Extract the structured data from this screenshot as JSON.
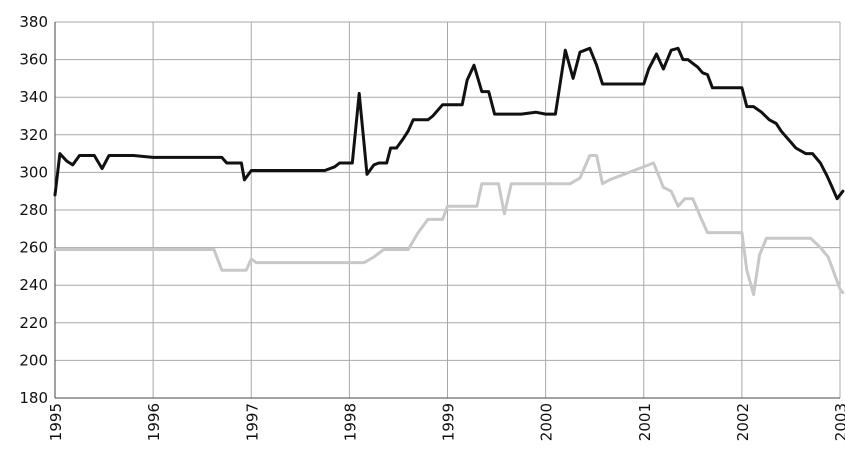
{
  "chart_data": {
    "type": "line",
    "title": "",
    "xlabel": "",
    "ylabel": "",
    "xlim": [
      1995,
      2003
    ],
    "ylim": [
      180,
      380
    ],
    "grid": true,
    "y_ticks": [
      180,
      200,
      220,
      240,
      260,
      280,
      300,
      320,
      340,
      360,
      380
    ],
    "x_tick_labels": [
      "1995",
      "1996",
      "1997",
      "1998",
      "1999",
      "2000",
      "2001",
      "2002",
      "2003"
    ],
    "x_ticks": [
      1995,
      1996,
      1997,
      1998,
      1999,
      2000,
      2001,
      2002,
      2003
    ],
    "series": [
      {
        "color": "#111111",
        "x": [
          1995.0,
          1995.05,
          1995.12,
          1995.18,
          1995.25,
          1995.32,
          1995.4,
          1995.48,
          1995.55,
          1995.62,
          1995.7,
          1995.8,
          1996.0,
          1996.2,
          1996.4,
          1996.6,
          1996.7,
          1996.75,
          1996.85,
          1996.9,
          1996.93,
          1997.0,
          1997.05,
          1997.1,
          1997.3,
          1997.5,
          1997.7,
          1997.75,
          1997.85,
          1997.9,
          1998.0,
          1998.03,
          1998.1,
          1998.18,
          1998.25,
          1998.3,
          1998.38,
          1998.42,
          1998.48,
          1998.55,
          1998.6,
          1998.65,
          1998.73,
          1998.8,
          1998.85,
          1998.95,
          1999.0,
          1999.05,
          1999.15,
          1999.2,
          1999.27,
          1999.35,
          1999.42,
          1999.48,
          1999.55,
          1999.6,
          1999.75,
          1999.9,
          2000.0,
          2000.1,
          2000.2,
          2000.28,
          2000.35,
          2000.45,
          2000.52,
          2000.58,
          2000.65,
          2000.75,
          2000.9,
          2001.0,
          2001.05,
          2001.13,
          2001.2,
          2001.28,
          2001.35,
          2001.4,
          2001.45,
          2001.5,
          2001.55,
          2001.6,
          2001.65,
          2001.7,
          2001.78,
          2001.85,
          2001.92,
          2002.0,
          2002.05,
          2002.12,
          2002.2,
          2002.28,
          2002.35,
          2002.4,
          2002.45,
          2002.5,
          2002.55,
          2002.65,
          2002.72,
          2002.8,
          2002.87,
          2002.92,
          2002.97,
          2003.03
        ],
        "values": [
          288,
          310,
          306,
          304,
          309,
          309,
          309,
          302,
          309,
          309,
          309,
          309,
          308,
          308,
          308,
          308,
          308,
          305,
          305,
          305,
          296,
          301,
          301,
          301,
          301,
          301,
          301,
          301,
          303,
          305,
          305,
          305,
          342,
          299,
          304,
          305,
          305,
          313,
          313,
          318,
          322,
          328,
          328,
          328,
          330,
          336,
          336,
          336,
          336,
          349,
          357,
          343,
          343,
          331,
          331,
          331,
          331,
          332,
          331,
          331,
          365,
          350,
          364,
          366,
          357,
          347,
          347,
          347,
          347,
          347,
          355,
          363,
          355,
          365,
          366,
          360,
          360,
          358,
          356,
          353,
          352,
          345,
          345,
          345,
          345,
          345,
          335,
          335,
          332,
          328,
          326,
          322,
          319,
          316,
          313,
          310,
          310,
          305,
          298,
          292,
          286,
          290
        ]
      },
      {
        "color": "#c8c8c8",
        "x": [
          1995.0,
          1995.3,
          1995.6,
          1995.9,
          1996.2,
          1996.5,
          1996.62,
          1996.7,
          1996.8,
          1996.9,
          1996.95,
          1997.0,
          1997.05,
          1997.1,
          1997.3,
          1997.5,
          1997.7,
          1997.9,
          1998.0,
          1998.15,
          1998.25,
          1998.35,
          1998.4,
          1998.5,
          1998.6,
          1998.7,
          1998.8,
          1998.88,
          1998.95,
          1999.0,
          1999.1,
          1999.2,
          1999.3,
          1999.35,
          1999.45,
          1999.52,
          1999.58,
          1999.65,
          1999.7,
          1999.8,
          1999.95,
          2000.05,
          2000.15,
          2000.25,
          2000.35,
          2000.45,
          2000.52,
          2000.58,
          2000.65,
          2000.8,
          2000.95,
          2001.1,
          2001.2,
          2001.28,
          2001.35,
          2001.42,
          2001.5,
          2001.58,
          2001.65,
          2001.72,
          2001.8,
          2001.9,
          2002.0,
          2002.05,
          2002.12,
          2002.18,
          2002.25,
          2002.3,
          2002.4,
          2002.5,
          2002.6,
          2002.7,
          2002.8,
          2002.88,
          2002.95,
          2003.0,
          2003.03
        ],
        "values": [
          259,
          259,
          259,
          259,
          259,
          259,
          259,
          248,
          248,
          248,
          248,
          254,
          252,
          252,
          252,
          252,
          252,
          252,
          252,
          252,
          255,
          259,
          259,
          259,
          259,
          268,
          275,
          275,
          275,
          282,
          282,
          282,
          282,
          294,
          294,
          294,
          278,
          294,
          294,
          294,
          294,
          294,
          294,
          294,
          297,
          309,
          309,
          294,
          296,
          299,
          302,
          305,
          292,
          290,
          282,
          286,
          286,
          276,
          268,
          268,
          268,
          268,
          268,
          248,
          235,
          256,
          265,
          265,
          265,
          265,
          265,
          265,
          260,
          255,
          245,
          238,
          236
        ]
      }
    ]
  }
}
